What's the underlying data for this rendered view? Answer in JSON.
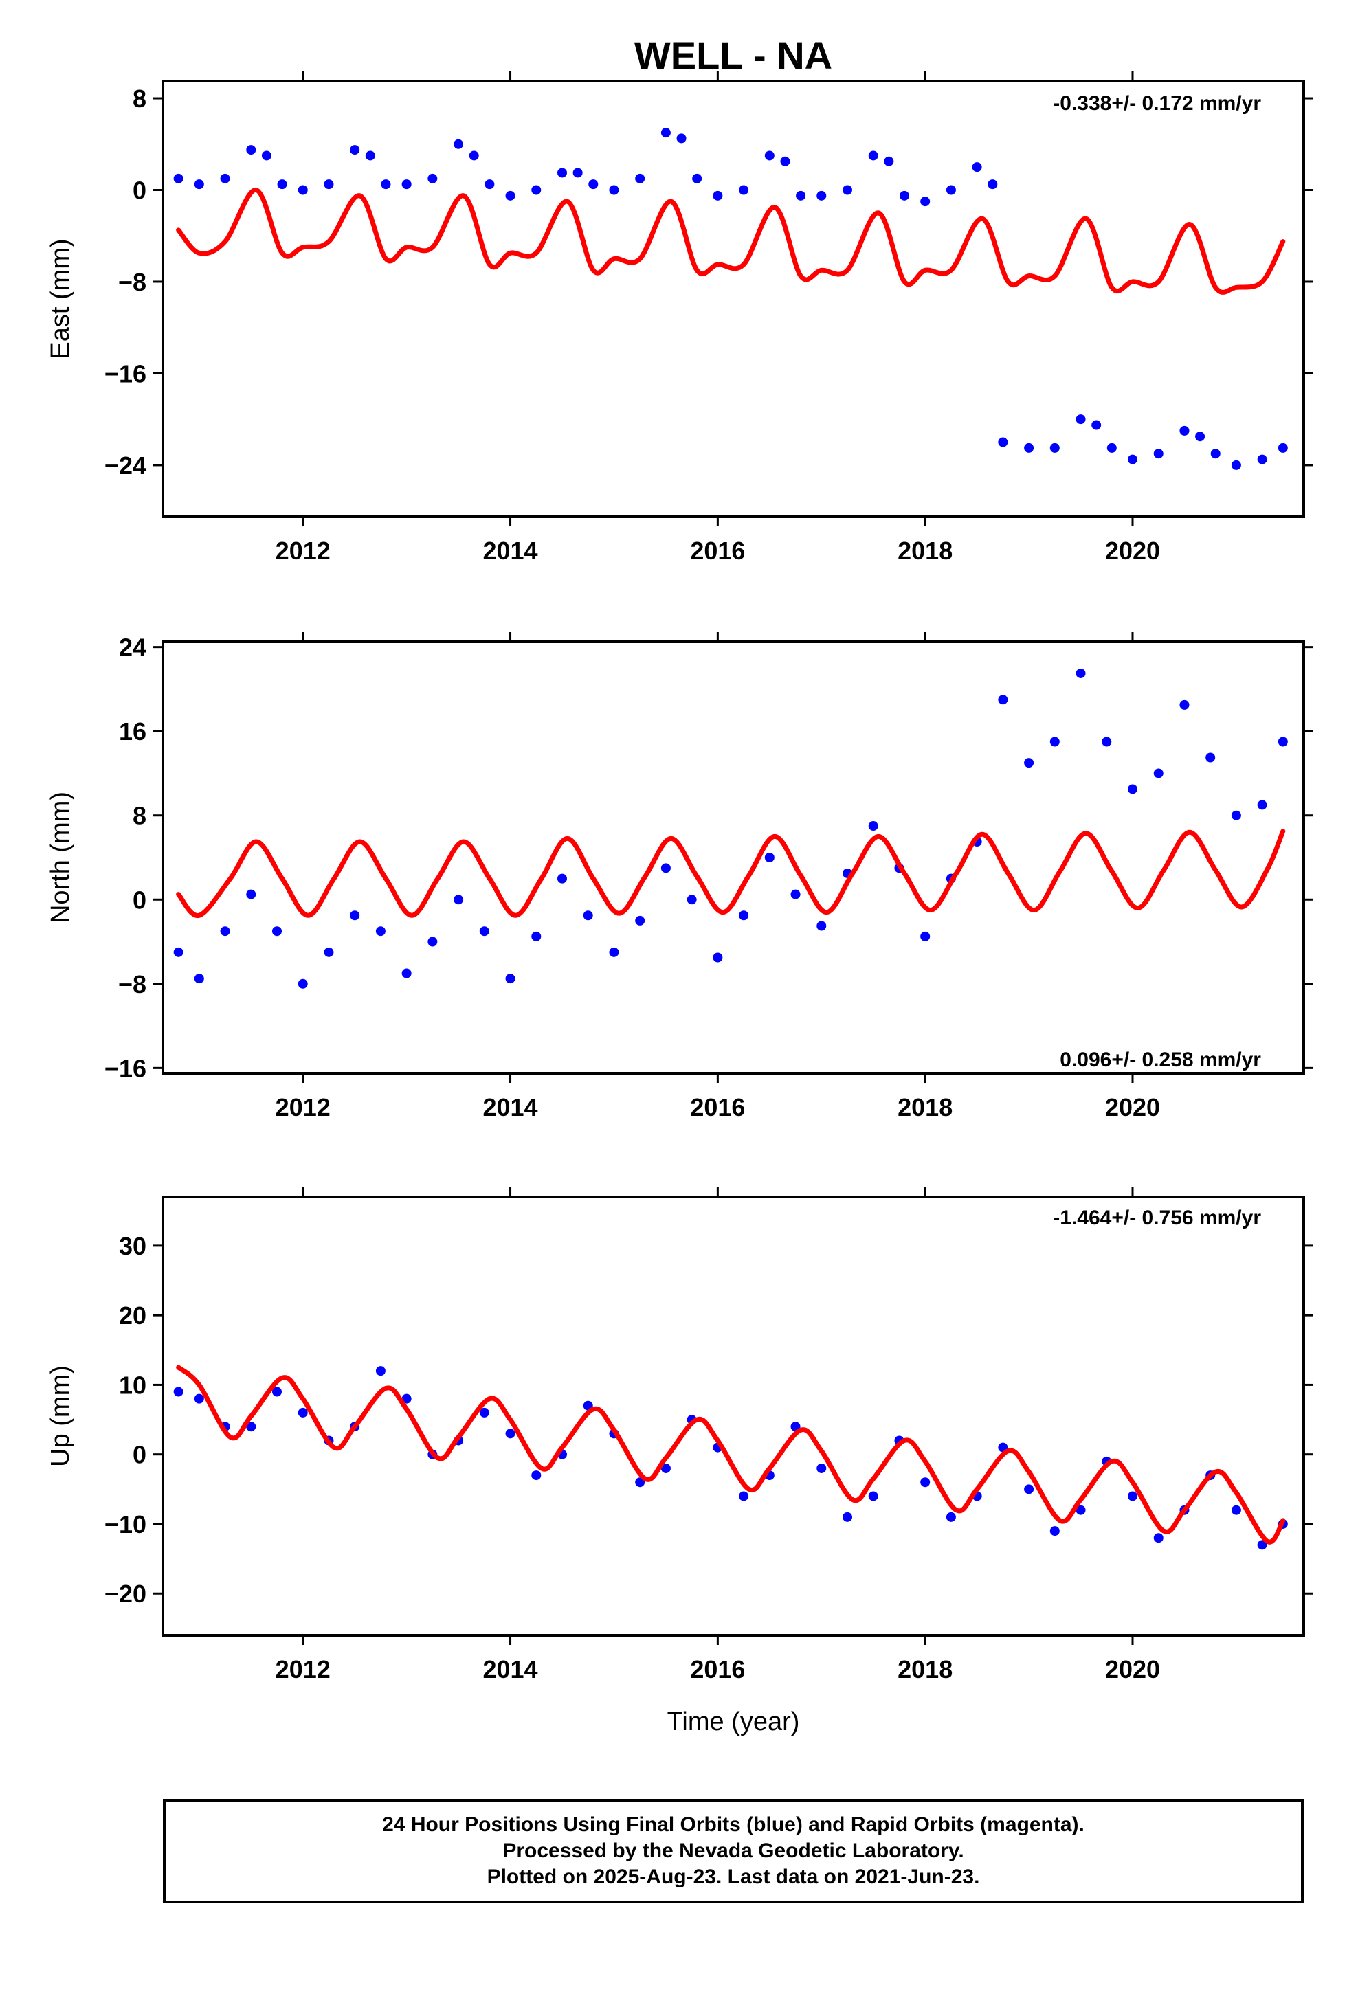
{
  "figure": {
    "title": "WELL - NA",
    "xlabel": "Time (year)",
    "colors": {
      "data": "#0000ff",
      "model": "#ff0000",
      "frame": "#000000"
    }
  },
  "footer": {
    "line1": "24 Hour Positions Using Final Orbits (blue) and Rapid Orbits (magenta).",
    "line2": "Processed by the Nevada Geodetic Laboratory.",
    "line3": "Plotted on 2025-Aug-23. Last data on 2021-Jun-23."
  },
  "chart_data": [
    {
      "type": "scatter",
      "component": "east",
      "ylabel": "East (mm)",
      "rate_label": "-0.338+/- 0.172 mm/yr",
      "xlim": [
        2010.65,
        2021.65
      ],
      "ylim": [
        -28.5,
        9.5
      ],
      "xticks": [
        2012,
        2014,
        2016,
        2018,
        2020
      ],
      "yticks": [
        8,
        0,
        -8,
        -16,
        -24
      ],
      "ytick_labels": [
        "8",
        "0",
        "−8",
        "−16",
        "−24"
      ],
      "series": [
        {
          "role": "observations",
          "x": [
            2010.8,
            2011.0,
            2011.25,
            2011.5,
            2011.65,
            2011.8,
            2012.0,
            2012.25,
            2012.5,
            2012.65,
            2012.8,
            2013.0,
            2013.25,
            2013.5,
            2013.65,
            2013.8,
            2014.0,
            2014.25,
            2014.5,
            2014.65,
            2014.8,
            2015.0,
            2015.25,
            2015.5,
            2015.65,
            2015.8,
            2016.0,
            2016.25,
            2016.5,
            2016.65,
            2016.8,
            2017.0,
            2017.25,
            2017.5,
            2017.65,
            2017.8,
            2018.0,
            2018.25,
            2018.5,
            2018.65,
            2018.75,
            2019.0,
            2019.25,
            2019.5,
            2019.65,
            2019.8,
            2020.0,
            2020.25,
            2020.5,
            2020.65,
            2020.8,
            2021.0,
            2021.25,
            2021.45
          ],
          "y": [
            1.0,
            0.5,
            1.0,
            3.5,
            3.0,
            0.5,
            0.0,
            0.5,
            3.5,
            3.0,
            0.5,
            0.5,
            1.0,
            4.0,
            3.0,
            0.5,
            -0.5,
            0.0,
            1.5,
            1.5,
            0.5,
            0.0,
            1.0,
            5.0,
            4.5,
            1.0,
            -0.5,
            0.0,
            3.0,
            2.5,
            -0.5,
            -0.5,
            0.0,
            3.0,
            2.5,
            -0.5,
            -1.0,
            0.0,
            2.0,
            0.5,
            -22.0,
            -22.5,
            -22.5,
            -20.0,
            -20.5,
            -22.5,
            -23.5,
            -23.0,
            -21.0,
            -21.5,
            -23.0,
            -24.0,
            -23.5,
            -22.5
          ]
        },
        {
          "role": "model",
          "x": [
            2010.8,
            2011.0,
            2011.25,
            2011.55,
            2011.8,
            2012.0,
            2012.25,
            2012.55,
            2012.8,
            2013.0,
            2013.25,
            2013.55,
            2013.8,
            2014.0,
            2014.25,
            2014.55,
            2014.8,
            2015.0,
            2015.25,
            2015.55,
            2015.8,
            2016.0,
            2016.25,
            2016.55,
            2016.8,
            2017.0,
            2017.25,
            2017.55,
            2017.8,
            2018.0,
            2018.25,
            2018.55,
            2018.8,
            2019.0,
            2019.25,
            2019.55,
            2019.8,
            2020.0,
            2020.25,
            2020.55,
            2020.8,
            2021.0,
            2021.25,
            2021.45
          ],
          "y": [
            -3.5,
            -5.5,
            -4.5,
            0.0,
            -5.5,
            -5.0,
            -4.5,
            -0.5,
            -6.0,
            -5.0,
            -5.0,
            -0.5,
            -6.5,
            -5.5,
            -5.5,
            -1.0,
            -7.0,
            -6.0,
            -6.0,
            -1.0,
            -7.0,
            -6.5,
            -6.5,
            -1.5,
            -7.5,
            -7.0,
            -7.0,
            -2.0,
            -8.0,
            -7.0,
            -7.0,
            -2.5,
            -8.0,
            -7.5,
            -7.5,
            -2.5,
            -8.5,
            -8.0,
            -8.0,
            -3.0,
            -8.5,
            -8.5,
            -8.0,
            -4.5
          ]
        }
      ]
    },
    {
      "type": "scatter",
      "component": "north",
      "ylabel": "North (mm)",
      "rate_label": "0.096+/- 0.258 mm/yr",
      "xlim": [
        2010.65,
        2021.65
      ],
      "ylim": [
        -16.5,
        24.5
      ],
      "xticks": [
        2012,
        2014,
        2016,
        2018,
        2020
      ],
      "yticks": [
        24,
        16,
        8,
        0,
        -8,
        -16
      ],
      "ytick_labels": [
        "24",
        "16",
        "8",
        "0",
        "−8",
        "−16"
      ],
      "series": [
        {
          "role": "observations",
          "x": [
            2010.8,
            2011.0,
            2011.25,
            2011.5,
            2011.75,
            2012.0,
            2012.25,
            2012.5,
            2012.75,
            2013.0,
            2013.25,
            2013.5,
            2013.75,
            2014.0,
            2014.25,
            2014.5,
            2014.75,
            2015.0,
            2015.25,
            2015.5,
            2015.75,
            2016.0,
            2016.25,
            2016.5,
            2016.75,
            2017.0,
            2017.25,
            2017.5,
            2017.75,
            2018.0,
            2018.25,
            2018.5,
            2018.75,
            2019.0,
            2019.25,
            2019.5,
            2019.75,
            2020.0,
            2020.25,
            2020.5,
            2020.75,
            2021.0,
            2021.25,
            2021.45
          ],
          "y": [
            -5.0,
            -7.5,
            -3.0,
            0.5,
            -3.0,
            -8.0,
            -5.0,
            -1.5,
            -3.0,
            -7.0,
            -4.0,
            0.0,
            -3.0,
            -7.5,
            -3.5,
            2.0,
            -1.5,
            -5.0,
            -2.0,
            3.0,
            0.0,
            -5.5,
            -1.5,
            4.0,
            0.5,
            -2.5,
            2.5,
            7.0,
            3.0,
            -3.5,
            2.0,
            5.5,
            19.0,
            13.0,
            15.0,
            21.5,
            15.0,
            10.5,
            12.0,
            18.5,
            13.5,
            8.0,
            9.0,
            15.0
          ]
        },
        {
          "role": "model",
          "x": [
            2010.8,
            2011.0,
            2011.3,
            2011.55,
            2011.8,
            2012.05,
            2012.3,
            2012.55,
            2012.8,
            2013.05,
            2013.3,
            2013.55,
            2013.8,
            2014.05,
            2014.3,
            2014.55,
            2014.8,
            2015.05,
            2015.3,
            2015.55,
            2015.8,
            2016.05,
            2016.3,
            2016.55,
            2016.8,
            2017.05,
            2017.3,
            2017.55,
            2017.8,
            2018.05,
            2018.3,
            2018.55,
            2018.8,
            2019.05,
            2019.3,
            2019.55,
            2019.8,
            2020.05,
            2020.3,
            2020.55,
            2020.8,
            2021.05,
            2021.3,
            2021.45
          ],
          "y": [
            0.5,
            -1.5,
            2.0,
            5.5,
            2.0,
            -1.5,
            2.0,
            5.5,
            2.0,
            -1.5,
            2.0,
            5.5,
            2.0,
            -1.5,
            2.0,
            5.8,
            2.0,
            -1.3,
            2.2,
            5.8,
            2.2,
            -1.2,
            2.3,
            6.0,
            2.3,
            -1.2,
            2.5,
            6.0,
            2.5,
            -1.0,
            2.5,
            6.2,
            2.5,
            -1.0,
            2.7,
            6.3,
            2.7,
            -0.8,
            2.8,
            6.4,
            2.8,
            -0.7,
            2.9,
            6.5
          ]
        }
      ]
    },
    {
      "type": "scatter",
      "component": "up",
      "ylabel": "Up (mm)",
      "rate_label": "-1.464+/- 0.756 mm/yr",
      "xlim": [
        2010.65,
        2021.65
      ],
      "ylim": [
        -26,
        37
      ],
      "xticks": [
        2012,
        2014,
        2016,
        2018,
        2020
      ],
      "yticks": [
        30,
        20,
        10,
        0,
        -10,
        -20
      ],
      "ytick_labels": [
        "30",
        "20",
        "10",
        "0",
        "−10",
        "−20"
      ],
      "series": [
        {
          "role": "observations",
          "x": [
            2010.8,
            2011.0,
            2011.25,
            2011.5,
            2011.75,
            2012.0,
            2012.25,
            2012.5,
            2012.75,
            2013.0,
            2013.25,
            2013.5,
            2013.75,
            2014.0,
            2014.25,
            2014.5,
            2014.75,
            2015.0,
            2015.25,
            2015.5,
            2015.75,
            2016.0,
            2016.25,
            2016.5,
            2016.75,
            2017.0,
            2017.25,
            2017.5,
            2017.75,
            2018.0,
            2018.25,
            2018.5,
            2018.75,
            2019.0,
            2019.25,
            2019.5,
            2019.75,
            2020.0,
            2020.25,
            2020.5,
            2020.75,
            2021.0,
            2021.25,
            2021.45
          ],
          "y": [
            9.0,
            8.0,
            4.0,
            4.0,
            9.0,
            6.0,
            2.0,
            4.0,
            12.0,
            8.0,
            0.0,
            2.0,
            6.0,
            3.0,
            -3.0,
            0.0,
            7.0,
            3.0,
            -4.0,
            -2.0,
            5.0,
            1.0,
            -6.0,
            -3.0,
            4.0,
            -2.0,
            -9.0,
            -6.0,
            2.0,
            -4.0,
            -9.0,
            -6.0,
            1.0,
            -5.0,
            -11.0,
            -8.0,
            -1.0,
            -6.0,
            -12.0,
            -8.0,
            -3.0,
            -8.0,
            -13.0,
            -10.0
          ]
        },
        {
          "role": "model",
          "x": [
            2010.8,
            2011.0,
            2011.3,
            2011.5,
            2011.8,
            2012.0,
            2012.3,
            2012.5,
            2012.8,
            2013.0,
            2013.3,
            2013.5,
            2013.8,
            2014.0,
            2014.3,
            2014.5,
            2014.8,
            2015.0,
            2015.3,
            2015.5,
            2015.8,
            2016.0,
            2016.3,
            2016.5,
            2016.8,
            2017.0,
            2017.3,
            2017.5,
            2017.8,
            2018.0,
            2018.3,
            2018.5,
            2018.8,
            2019.0,
            2019.3,
            2019.5,
            2019.8,
            2020.0,
            2020.3,
            2020.5,
            2020.8,
            2021.0,
            2021.3,
            2021.45
          ],
          "y": [
            12.5,
            10.0,
            2.5,
            5.5,
            11.0,
            8.0,
            1.0,
            4.0,
            9.5,
            6.5,
            -0.5,
            2.5,
            8.0,
            5.0,
            -2.0,
            1.0,
            6.5,
            3.5,
            -3.5,
            -0.5,
            5.0,
            2.0,
            -5.0,
            -2.0,
            3.5,
            0.5,
            -6.5,
            -3.5,
            2.0,
            -1.0,
            -8.0,
            -5.0,
            0.5,
            -2.5,
            -9.5,
            -6.5,
            -1.0,
            -4.0,
            -11.0,
            -8.0,
            -2.5,
            -5.5,
            -12.5,
            -9.5
          ]
        }
      ]
    }
  ]
}
